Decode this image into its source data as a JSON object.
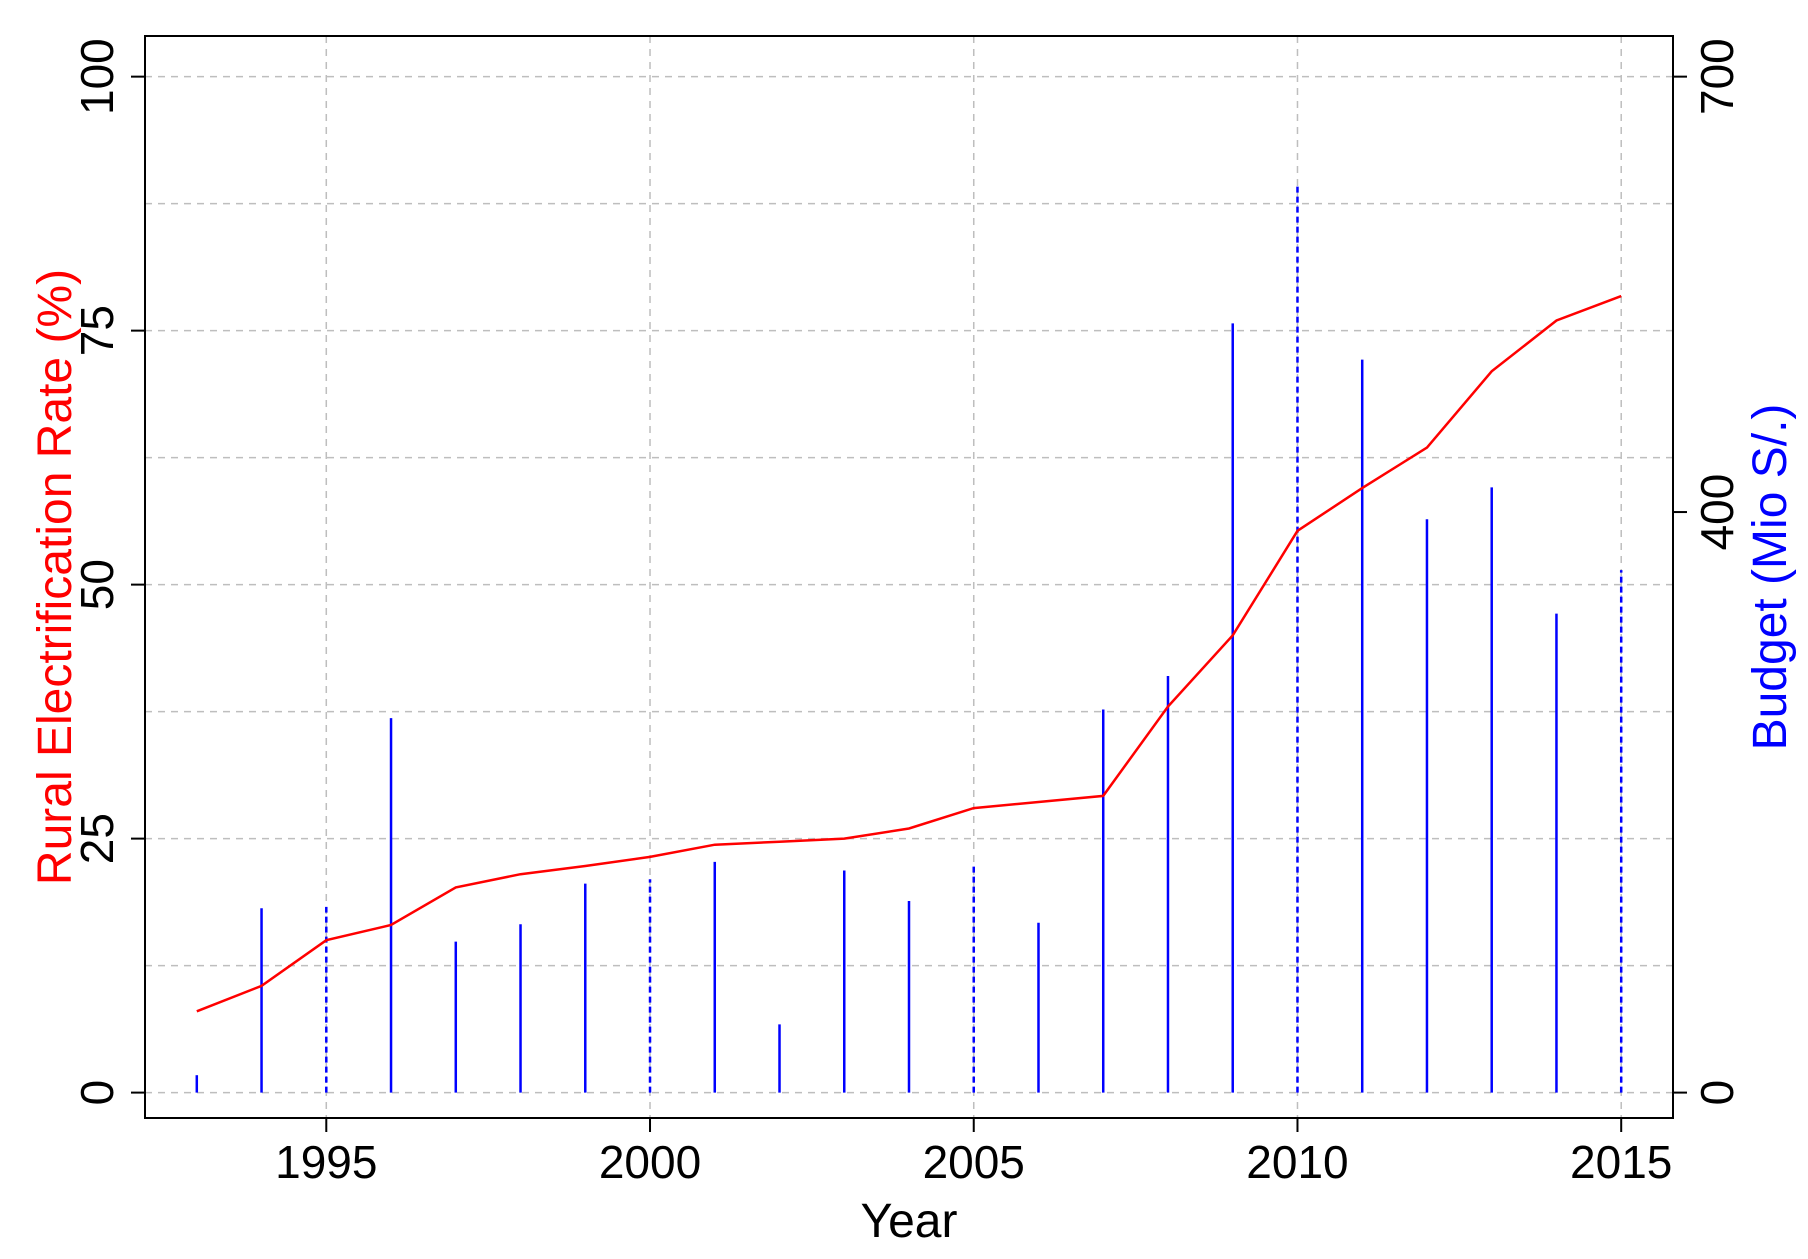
{
  "chart_data": {
    "type": "bar+line",
    "xlabel": "Year",
    "ylabel_left": "Rural Electrification Rate (%)",
    "ylabel_right": "Budget (Mio S/.)",
    "colors": {
      "line": "#ff0000",
      "bars": "#0000ff",
      "grid": "#bebebe"
    },
    "xlim": [
      1992.2,
      2015.8
    ],
    "ylim_left": [
      -2.5,
      104
    ],
    "ylim_right": [
      -17.5,
      728
    ],
    "x_ticks": [
      1995,
      2000,
      2005,
      2010,
      2015
    ],
    "y_left_ticks": [
      0,
      25,
      50,
      75,
      100
    ],
    "y_right_ticks": [
      0,
      400,
      700
    ],
    "grid": true,
    "rate_series": {
      "name": "Rural Electrification Rate (%)",
      "x": [
        1993,
        1994,
        1995,
        1996,
        1997,
        1998,
        1999,
        2000,
        2001,
        2002,
        2003,
        2004,
        2005,
        2006,
        2007,
        2008,
        2009,
        2010,
        2011,
        2012,
        2013,
        2014,
        2015
      ],
      "values": [
        8,
        10.5,
        15,
        16.5,
        20.2,
        21.5,
        22.3,
        23.2,
        24.4,
        24.7,
        25,
        26,
        28,
        28.6,
        29.2,
        38,
        45,
        55.3,
        59.5,
        63.5,
        71,
        76,
        78.4
      ]
    },
    "budget_series": {
      "name": "Budget (Mio S/.)",
      "x": [
        1993,
        1994,
        1995,
        1996,
        1997,
        1998,
        1999,
        2000,
        2001,
        2002,
        2003,
        2004,
        2005,
        2006,
        2007,
        2008,
        2009,
        2010,
        2011,
        2012,
        2013,
        2014,
        2015
      ],
      "values": [
        12,
        127,
        128,
        258,
        104,
        116,
        144,
        147,
        159,
        47,
        153,
        132,
        158,
        117,
        264,
        287,
        530,
        627,
        505,
        395,
        417,
        330,
        360
      ],
      "dashed": [
        false,
        false,
        true,
        false,
        false,
        false,
        false,
        true,
        false,
        false,
        false,
        false,
        true,
        false,
        false,
        false,
        false,
        true,
        false,
        false,
        false,
        false,
        true
      ]
    }
  }
}
